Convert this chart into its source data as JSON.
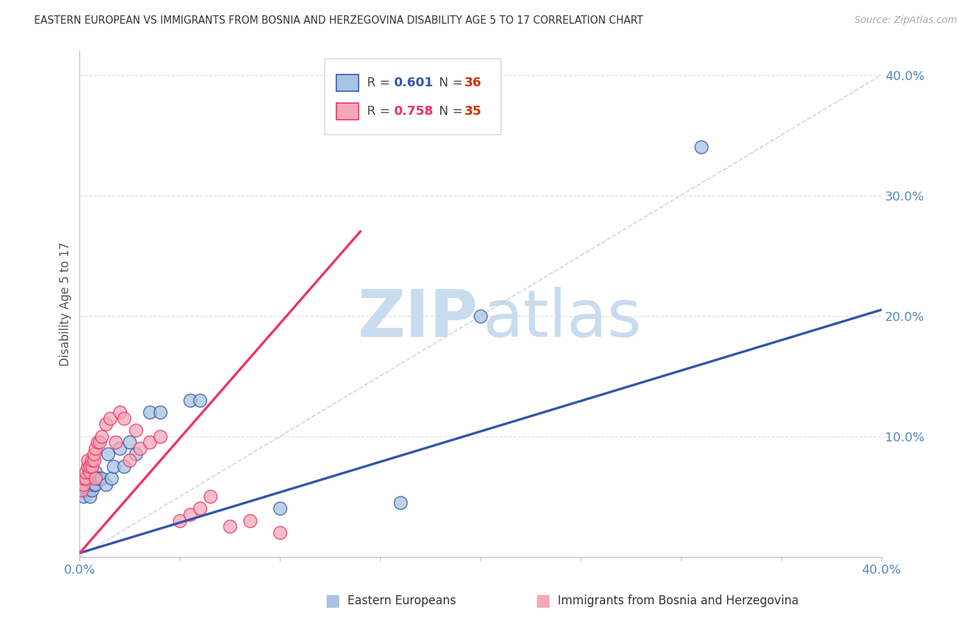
{
  "title": "EASTERN EUROPEAN VS IMMIGRANTS FROM BOSNIA AND HERZEGOVINA DISABILITY AGE 5 TO 17 CORRELATION CHART",
  "source": "Source: ZipAtlas.com",
  "ylabel": "Disability Age 5 to 17",
  "xlim": [
    0,
    0.4
  ],
  "ylim": [
    0,
    0.42
  ],
  "R1": 0.601,
  "N1": 36,
  "R2": 0.758,
  "N2": 35,
  "color_blue": "#A8C4E0",
  "color_pink": "#F4A8B8",
  "color_blue_line": "#3355AA",
  "color_pink_line": "#EE3366",
  "color_axis_text": "#5588BB",
  "blue_line_x0": 0.0,
  "blue_line_y0": 0.003,
  "blue_line_x1": 0.4,
  "blue_line_y1": 0.205,
  "pink_line_x0": 0.0,
  "pink_line_y0": 0.003,
  "pink_line_x1": 0.14,
  "pink_line_y1": 0.27,
  "blue_x": [
    0.001,
    0.002,
    0.002,
    0.003,
    0.003,
    0.003,
    0.004,
    0.004,
    0.005,
    0.005,
    0.005,
    0.006,
    0.006,
    0.007,
    0.007,
    0.008,
    0.008,
    0.009,
    0.01,
    0.011,
    0.013,
    0.014,
    0.016,
    0.017,
    0.02,
    0.022,
    0.025,
    0.028,
    0.035,
    0.04,
    0.055,
    0.06,
    0.1,
    0.16,
    0.2,
    0.31
  ],
  "blue_y": [
    0.055,
    0.05,
    0.06,
    0.055,
    0.06,
    0.065,
    0.055,
    0.065,
    0.05,
    0.06,
    0.065,
    0.06,
    0.055,
    0.06,
    0.065,
    0.06,
    0.07,
    0.065,
    0.065,
    0.065,
    0.06,
    0.085,
    0.065,
    0.075,
    0.09,
    0.075,
    0.095,
    0.085,
    0.12,
    0.12,
    0.13,
    0.13,
    0.04,
    0.045,
    0.2,
    0.34
  ],
  "pink_x": [
    0.001,
    0.002,
    0.002,
    0.003,
    0.003,
    0.004,
    0.004,
    0.005,
    0.005,
    0.006,
    0.006,
    0.007,
    0.007,
    0.008,
    0.008,
    0.009,
    0.01,
    0.011,
    0.013,
    0.015,
    0.018,
    0.02,
    0.022,
    0.025,
    0.028,
    0.03,
    0.035,
    0.04,
    0.05,
    0.055,
    0.06,
    0.065,
    0.075,
    0.085,
    0.1
  ],
  "pink_y": [
    0.055,
    0.06,
    0.065,
    0.065,
    0.07,
    0.075,
    0.08,
    0.07,
    0.075,
    0.075,
    0.08,
    0.08,
    0.085,
    0.065,
    0.09,
    0.095,
    0.095,
    0.1,
    0.11,
    0.115,
    0.095,
    0.12,
    0.115,
    0.08,
    0.105,
    0.09,
    0.095,
    0.1,
    0.03,
    0.035,
    0.04,
    0.05,
    0.025,
    0.03,
    0.02
  ]
}
